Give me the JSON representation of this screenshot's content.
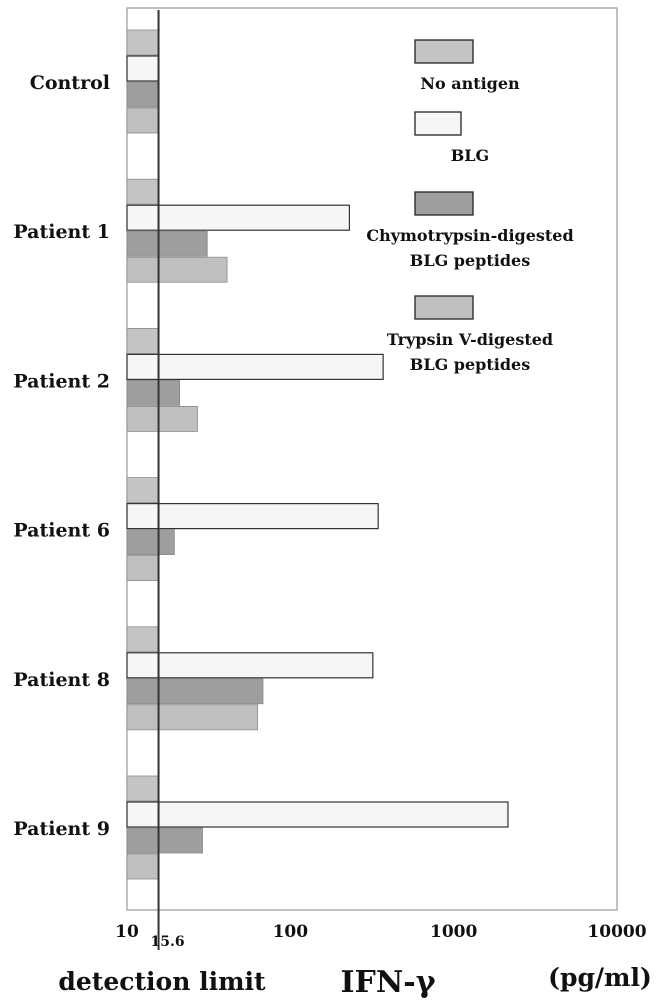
{
  "chart_data": {
    "type": "bar",
    "orientation": "horizontal",
    "x_scale": "log",
    "xlim": [
      10,
      10000
    ],
    "x_ticks": [
      "10",
      "100",
      "1000",
      "10000"
    ],
    "xlabel": "IFN-γ",
    "x_unit": "(pg/ml)",
    "reference_line": {
      "value": 15.6,
      "value_label": "15.6",
      "label": "detection limit"
    },
    "categories": [
      "Control",
      "Patient 1",
      "Patient 2",
      "Patient 6",
      "Patient 8",
      "Patient 9"
    ],
    "series": [
      {
        "name": "No antigen",
        "color": "#c4c4c4",
        "values": [
          15.6,
          15.6,
          15.6,
          15.6,
          15.6,
          15.6
        ]
      },
      {
        "name": "BLG",
        "color": "#f6f6f6",
        "values": [
          15.6,
          230,
          370,
          345,
          320,
          2150
        ]
      },
      {
        "name": "Chymotrypsin-digested BLG peptides",
        "color": "#9e9e9e",
        "values": [
          15.6,
          31,
          21,
          19.5,
          68,
          29
        ]
      },
      {
        "name": "Trypsin V-digested BLG peptides",
        "color": "#c0c0c0",
        "values": [
          15.6,
          41,
          27,
          15.6,
          63,
          15.6
        ]
      }
    ],
    "legend": {
      "position": "top-right",
      "entries": [
        {
          "lines": [
            "No antigen"
          ]
        },
        {
          "lines": [
            "BLG"
          ]
        },
        {
          "lines": [
            "Chymotrypsin-digested",
            "BLG peptides"
          ]
        },
        {
          "lines": [
            "Trypsin V-digested",
            "BLG peptides"
          ]
        }
      ]
    },
    "grid": false
  }
}
